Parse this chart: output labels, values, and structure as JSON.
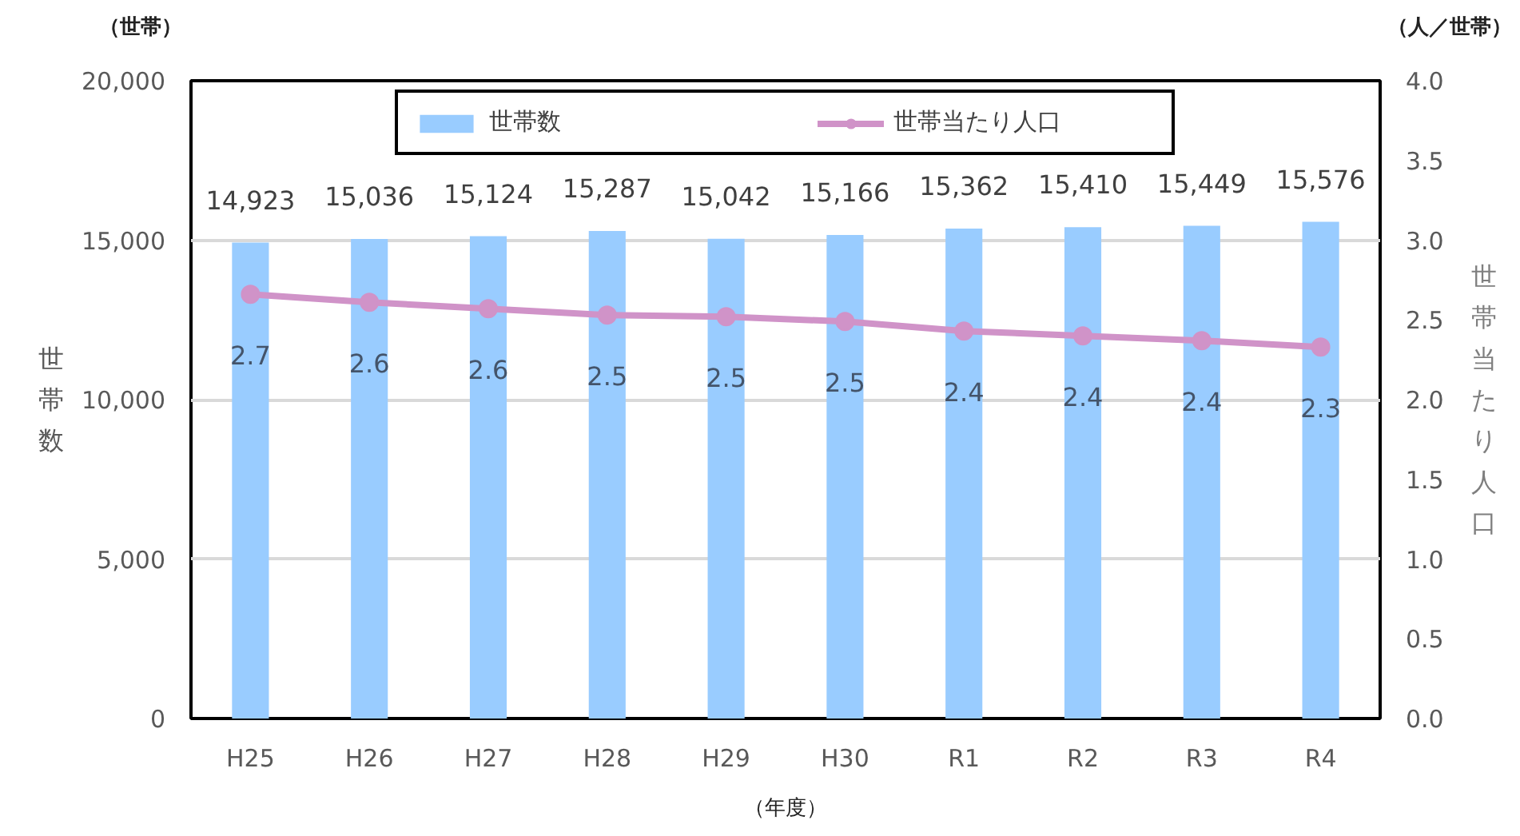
{
  "chart_data": {
    "type": "bar",
    "xlabel": "（年度）",
    "ylabel": "世帯数",
    "y2label": "世帯当たり人口",
    "annotations": [
      "（世帯）",
      "（人／世帯）"
    ],
    "categories": [
      "H25",
      "H26",
      "H27",
      "H28",
      "H29",
      "H30",
      "R1",
      "R2",
      "R3",
      "R4"
    ],
    "series": [
      {
        "name": "世帯数",
        "color": "#99ccff",
        "values": [
          14923,
          15036,
          15124,
          15287,
          15042,
          15166,
          15362,
          15410,
          15449,
          15576
        ],
        "value_labels": [
          "14,923",
          "15,036",
          "15,124",
          "15,287",
          "15,042",
          "15,166",
          "15,362",
          "15,410",
          "15,449",
          "15,576"
        ]
      },
      {
        "name": "世帯当たり人口",
        "type": "line",
        "axis": "y2",
        "color": "#d093c8",
        "values": [
          2.66,
          2.61,
          2.57,
          2.53,
          2.52,
          2.49,
          2.43,
          2.4,
          2.37,
          2.33
        ],
        "value_labels": [
          "2.7",
          "2.6",
          "2.6",
          "2.5",
          "2.5",
          "2.5",
          "2.4",
          "2.4",
          "2.4",
          "2.3"
        ]
      }
    ],
    "ylim": [
      0,
      20000
    ],
    "yticks": [
      0,
      {
        "value": 5000,
        "label": "5,000"
      },
      {
        "value": 10000,
        "label": "10,000"
      },
      {
        "value": 15000,
        "label": "15,000"
      },
      {
        "value": 20000,
        "label": "20,000"
      }
    ],
    "y2lim": [
      0,
      4
    ],
    "y2ticks": [
      {
        "value": 0,
        "label": "0.0"
      },
      0.5,
      {
        "value": 1,
        "label": "1.0"
      },
      1.5,
      {
        "value": 2,
        "label": "2.0"
      },
      2.5,
      {
        "value": 3,
        "label": "3.0"
      },
      3.5,
      {
        "value": 4,
        "label": "4.0"
      }
    ],
    "grid": "y",
    "legend": "top",
    "marker": "circle",
    "line_style": "solid"
  }
}
